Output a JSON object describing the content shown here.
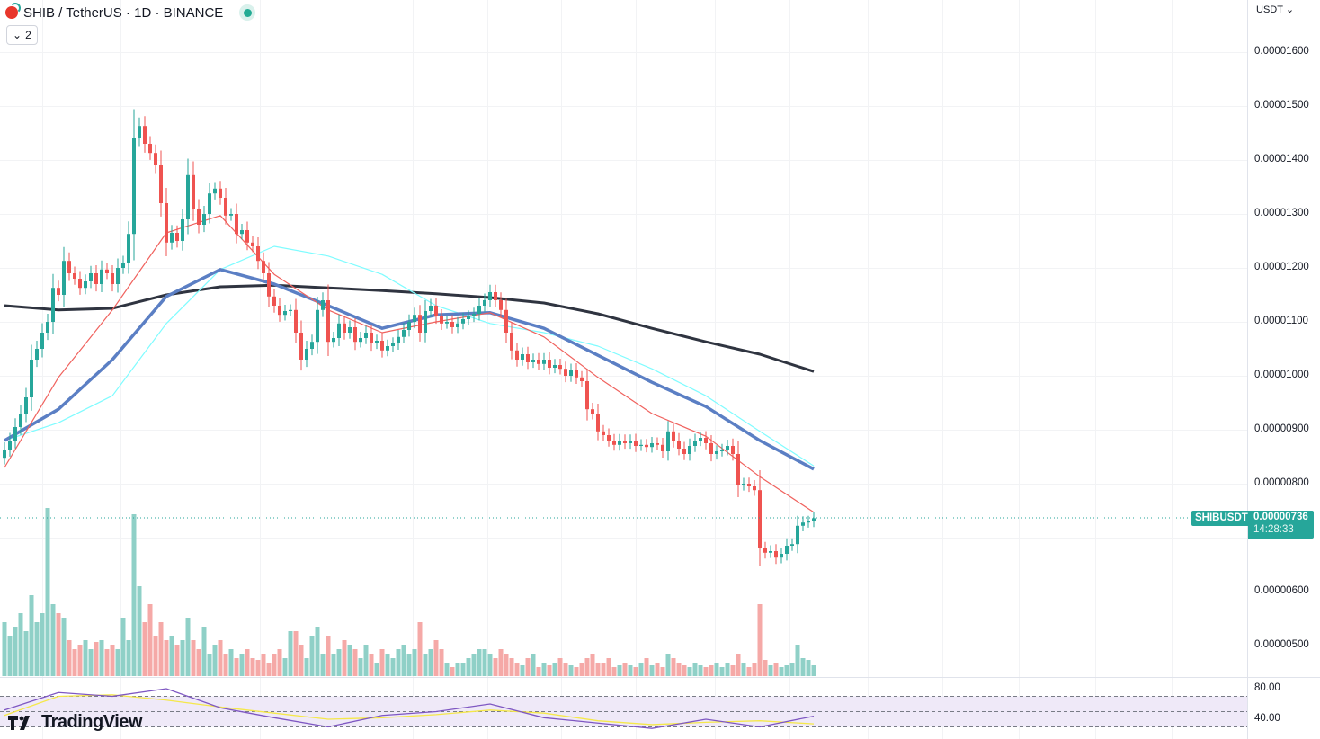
{
  "header": {
    "symbol": "SHIB",
    "title": "SHIB / TetherUS · 1D · BINANCE",
    "collapse_count": "2",
    "currency": "USDT"
  },
  "last_price": {
    "symbol_tag": "SHIBUSDT",
    "price": "0.00000736",
    "countdown": "14:28:33",
    "color": "#26a69a"
  },
  "price_axis": [
    "0.00001600",
    "0.00001500",
    "0.00001400",
    "0.00001300",
    "0.00001200",
    "0.00001100",
    "0.00001000",
    "0.00000900",
    "0.00000800",
    "0.00000600",
    "0.00000500"
  ],
  "rsi_axis": [
    "80.00",
    "40.00"
  ],
  "branding": "TradingView",
  "colors": {
    "up": "#26a69a",
    "down": "#ef5350",
    "vol_up": "#8fd0c7",
    "vol_down": "#f5a9a7",
    "ma_fast": "#f0625e",
    "ma_mid": "#5b7fc4",
    "ma_slow": "#7ffcff",
    "ma_long": "#2f3440",
    "rsi": "#7e57c2",
    "rsi_ma": "#f5e84a",
    "rsi_band": "#efe9f8"
  },
  "chart_data": {
    "type": "candlestick",
    "title": "SHIB / TetherUS · 1D · BINANCE",
    "price_unit": "1e-8 USDT",
    "ylim": [
      450,
      1650
    ],
    "closes": [
      863,
      880,
      905,
      930,
      960,
      1030,
      1050,
      1080,
      1100,
      1163,
      1150,
      1213,
      1190,
      1180,
      1163,
      1175,
      1190,
      1170,
      1197,
      1190,
      1170,
      1200,
      1210,
      1263,
      1440,
      1463,
      1430,
      1413,
      1390,
      1320,
      1247,
      1265,
      1250,
      1290,
      1372,
      1310,
      1280,
      1300,
      1338,
      1347,
      1330,
      1297,
      1300,
      1263,
      1270,
      1247,
      1240,
      1213,
      1190,
      1147,
      1130,
      1113,
      1120,
      1122,
      1080,
      1030,
      1050,
      1063,
      1122,
      1140,
      1063,
      1070,
      1097,
      1080,
      1090,
      1063,
      1070,
      1080,
      1060,
      1065,
      1047,
      1055,
      1060,
      1072,
      1085,
      1100,
      1113,
      1080,
      1120,
      1130,
      1110,
      1097,
      1100,
      1090,
      1097,
      1105,
      1110,
      1115,
      1130,
      1140,
      1155,
      1140,
      1122,
      1080,
      1047,
      1030,
      1040,
      1025,
      1030,
      1022,
      1030,
      1015,
      1020,
      1013,
      1000,
      1010,
      997,
      990,
      938,
      930,
      897,
      890,
      880,
      872,
      880,
      875,
      880,
      870,
      872,
      868,
      875,
      872,
      860,
      897,
      880,
      865,
      855,
      870,
      880,
      885,
      875,
      855,
      860,
      863,
      870,
      855,
      797,
      800,
      795,
      788,
      680,
      672,
      675,
      663,
      670,
      685,
      688,
      722,
      728,
      730,
      736
    ],
    "volume_relative": [
      60,
      45,
      55,
      70,
      50,
      90,
      60,
      70,
      187,
      80,
      70,
      65,
      40,
      30,
      35,
      40,
      30,
      38,
      40,
      30,
      35,
      30,
      65,
      40,
      180,
      100,
      60,
      80,
      45,
      60,
      40,
      45,
      35,
      40,
      65,
      40,
      30,
      55,
      25,
      35,
      40,
      25,
      30,
      20,
      25,
      30,
      20,
      18,
      25,
      15,
      25,
      30,
      20,
      50,
      50,
      35,
      20,
      45,
      55,
      25,
      45,
      25,
      30,
      40,
      35,
      30,
      20,
      35,
      25,
      15,
      30,
      25,
      20,
      30,
      35,
      25,
      30,
      60,
      25,
      30,
      40,
      30,
      15,
      10,
      15,
      15,
      20,
      25,
      30,
      30,
      25,
      20,
      30,
      25,
      20,
      15,
      12,
      20,
      25,
      10,
      15,
      12,
      15,
      20,
      15,
      12,
      10,
      15,
      20,
      25,
      15,
      15,
      20,
      10,
      12,
      15,
      12,
      10,
      15,
      20,
      12,
      15,
      10,
      25,
      20,
      15,
      12,
      10,
      15,
      12,
      10,
      12,
      15,
      10,
      15,
      12,
      25,
      15,
      10,
      15,
      80,
      18,
      12,
      15,
      10,
      12,
      15,
      35,
      20,
      18,
      12
    ],
    "moving_averages_sampled_every_10_bars": {
      "ma_fast_red": [
        830,
        997,
        1122,
        1265,
        1297,
        1188,
        1122,
        1080,
        1100,
        1117,
        1072,
        997,
        930,
        888,
        813,
        747
      ],
      "ma_mid_blue": [
        880,
        938,
        1030,
        1147,
        1197,
        1170,
        1130,
        1088,
        1113,
        1117,
        1088,
        1038,
        988,
        943,
        880,
        827
      ],
      "ma_slow_cyan": [
        880,
        913,
        963,
        1097,
        1197,
        1240,
        1222,
        1188,
        1130,
        1097,
        1080,
        1055,
        1013,
        963,
        897,
        833
      ],
      "ma_long_black": [
        1130,
        1122,
        1125,
        1150,
        1165,
        1168,
        1163,
        1158,
        1152,
        1145,
        1135,
        1115,
        1088,
        1063,
        1040,
        1008
      ]
    },
    "rsi": {
      "levels": [
        70,
        50,
        30
      ],
      "values_sampled_every_10_bars": [
        52,
        75,
        70,
        80,
        55,
        42,
        30,
        45,
        50,
        60,
        42,
        35,
        28,
        40,
        30,
        44
      ],
      "ma_sampled_every_10_bars": [
        45,
        70,
        72,
        65,
        56,
        48,
        40,
        42,
        46,
        52,
        48,
        38,
        33,
        36,
        38,
        34
      ]
    }
  }
}
